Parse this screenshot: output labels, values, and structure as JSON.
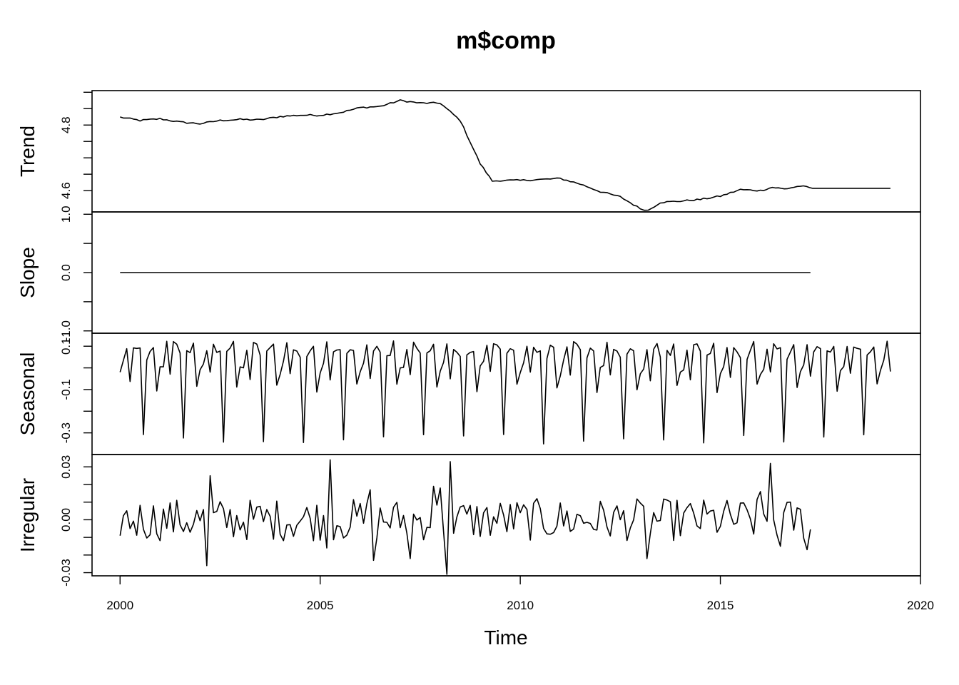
{
  "chart_data": {
    "type": "line",
    "title": "m$comp",
    "xlabel": "Time",
    "x_start": 2000.0,
    "x_step": 0.0833333333,
    "xlim": [
      1999.3,
      2020.0
    ],
    "x_ticks": [
      2000,
      2005,
      2010,
      2015,
      2020
    ],
    "x_tick_labels": [
      "2000",
      "2005",
      "2010",
      "2015",
      "2020"
    ],
    "panels": [
      {
        "name": "Trend",
        "ylabel": "Trend",
        "ylim": [
          4.535,
          4.905
        ],
        "y_ticks": [
          4.6,
          4.65,
          4.7,
          4.75,
          4.8,
          4.85,
          4.9
        ],
        "y_labeled_ticks": [
          {
            "value": 4.6,
            "label": "4.6"
          },
          {
            "value": 4.8,
            "label": "4.8"
          }
        ],
        "key_points": [
          [
            2000.0,
            4.824
          ],
          [
            2000.5,
            4.814
          ],
          [
            2001.0,
            4.819
          ],
          [
            2001.5,
            4.809
          ],
          [
            2002.0,
            4.804
          ],
          [
            2002.5,
            4.814
          ],
          [
            2003.0,
            4.817
          ],
          [
            2003.5,
            4.816
          ],
          [
            2004.0,
            4.826
          ],
          [
            2004.5,
            4.83
          ],
          [
            2005.0,
            4.83
          ],
          [
            2005.5,
            4.838
          ],
          [
            2006.0,
            4.853
          ],
          [
            2006.5,
            4.857
          ],
          [
            2007.0,
            4.875
          ],
          [
            2007.5,
            4.867
          ],
          [
            2008.0,
            4.867
          ],
          [
            2008.5,
            4.814
          ],
          [
            2009.0,
            4.682
          ],
          [
            2009.3,
            4.629
          ],
          [
            2009.5,
            4.631
          ],
          [
            2010.0,
            4.631
          ],
          [
            2010.5,
            4.634
          ],
          [
            2011.0,
            4.637
          ],
          [
            2011.5,
            4.62
          ],
          [
            2012.0,
            4.597
          ],
          [
            2012.5,
            4.581
          ],
          [
            2013.0,
            4.545
          ],
          [
            2013.2,
            4.54
          ],
          [
            2013.5,
            4.564
          ],
          [
            2014.0,
            4.568
          ],
          [
            2014.5,
            4.573
          ],
          [
            2015.0,
            4.583
          ],
          [
            2015.5,
            4.603
          ],
          [
            2016.0,
            4.6
          ],
          [
            2016.3,
            4.61
          ],
          [
            2016.6,
            4.605
          ],
          [
            2017.0,
            4.614
          ],
          [
            2017.3,
            4.607
          ],
          [
            2019.25,
            4.607
          ]
        ]
      },
      {
        "name": "Slope",
        "ylabel": "Slope",
        "ylim": [
          -1.04,
          1.04
        ],
        "y_ticks": [
          -1.0,
          -0.5,
          0.0,
          0.5,
          1.0
        ],
        "y_labeled_ticks": [
          {
            "value": -1.0,
            "label": "-1.0"
          },
          {
            "value": 0.0,
            "label": "0.0"
          },
          {
            "value": 1.0,
            "label": "1.0"
          }
        ],
        "key_points": [
          [
            2000.0,
            0.0
          ],
          [
            2017.25,
            0.0
          ]
        ]
      },
      {
        "name": "Seasonal",
        "ylabel": "Seasonal",
        "ylim": [
          -0.4,
          0.16
        ],
        "y_ticks": [
          -0.3,
          -0.2,
          -0.1,
          0.0,
          0.1
        ],
        "y_labeled_ticks": [
          {
            "value": -0.3,
            "label": "-0.3"
          },
          {
            "value": -0.1,
            "label": "-0.1"
          },
          {
            "value": 0.1,
            "label": "0.1"
          }
        ],
        "pattern": [
          -0.015,
          0.015,
          0.1,
          -0.04,
          0.097,
          0.095,
          0.07,
          -0.332,
          0.06,
          0.08,
          0.1,
          -0.09
        ],
        "months": 232
      },
      {
        "name": "Irregular",
        "ylabel": "Irregular",
        "ylim": [
          -0.0318,
          0.037
        ],
        "y_ticks": [
          -0.03,
          -0.02,
          -0.01,
          0.0,
          0.01,
          0.02,
          0.03
        ],
        "y_labeled_ticks": [
          {
            "value": -0.03,
            "label": "-0.03"
          },
          {
            "value": 0.0,
            "label": "0.00"
          },
          {
            "value": 0.03,
            "label": "0.03"
          }
        ],
        "spikes": [
          [
            2002.17,
            -0.026
          ],
          [
            2002.25,
            0.025
          ],
          [
            2005.17,
            -0.016
          ],
          [
            2005.25,
            0.034
          ],
          [
            2006.25,
            0.017
          ],
          [
            2006.33,
            -0.023
          ],
          [
            2007.25,
            -0.022
          ],
          [
            2007.83,
            0.019
          ],
          [
            2008.0,
            0.018
          ],
          [
            2008.17,
            -0.031
          ],
          [
            2008.25,
            0.033
          ],
          [
            2013.17,
            -0.022
          ],
          [
            2016.0,
            0.016
          ],
          [
            2016.25,
            0.032
          ],
          [
            2016.5,
            -0.015
          ],
          [
            2017.17,
            -0.017
          ]
        ],
        "months": 208
      }
    ]
  }
}
